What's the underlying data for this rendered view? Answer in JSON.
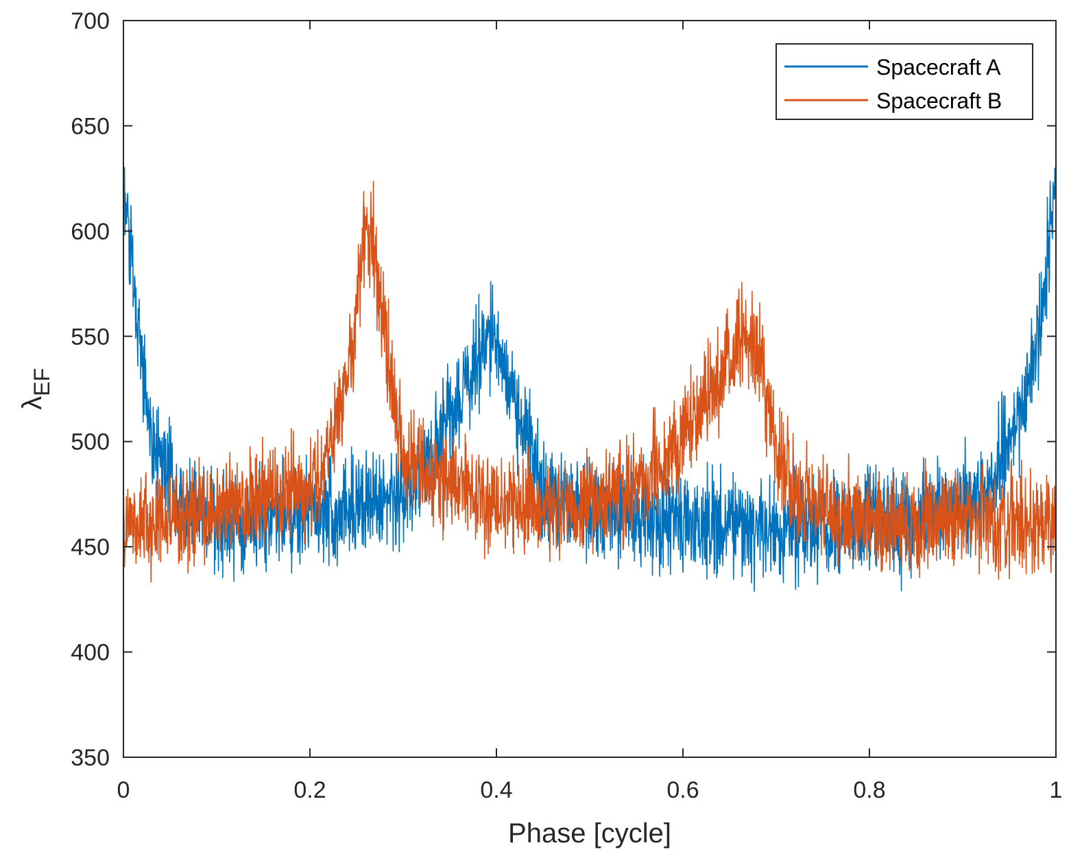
{
  "chart_data": {
    "type": "line",
    "title": "",
    "xlabel": "Phase [cycle]",
    "ylabel_main": "λ",
    "ylabel_sub": "EF",
    "xlim": [
      0,
      1
    ],
    "ylim": [
      350,
      700
    ],
    "xticks": [
      0,
      0.2,
      0.4,
      0.6,
      0.8,
      1
    ],
    "xtick_labels": [
      "0",
      "0.2",
      "0.4",
      "0.6",
      "0.8",
      "1"
    ],
    "yticks": [
      350,
      400,
      450,
      500,
      550,
      600,
      650,
      700
    ],
    "ytick_labels": [
      "350",
      "400",
      "450",
      "500",
      "550",
      "600",
      "650",
      "700"
    ],
    "legend_position": "top-right",
    "series": [
      {
        "name": "Spacecraft A",
        "color": "#0072BD",
        "noise_amplitude": 22,
        "envelope_x": [
          0,
          0.005,
          0.015,
          0.03,
          0.06,
          0.1,
          0.15,
          0.2,
          0.25,
          0.3,
          0.33,
          0.36,
          0.39,
          0.4,
          0.42,
          0.45,
          0.5,
          0.55,
          0.6,
          0.65,
          0.7,
          0.75,
          0.8,
          0.85,
          0.9,
          0.93,
          0.96,
          0.98,
          0.99,
          1.0
        ],
        "envelope_y": [
          620,
          600,
          560,
          500,
          470,
          462,
          462,
          466,
          470,
          472,
          495,
          520,
          550,
          545,
          520,
          475,
          468,
          465,
          462,
          460,
          458,
          460,
          462,
          462,
          470,
          482,
          510,
          545,
          580,
          630
        ]
      },
      {
        "name": "Spacecraft B",
        "color": "#D95319",
        "noise_amplitude": 22,
        "envelope_x": [
          0,
          0.05,
          0.1,
          0.15,
          0.18,
          0.21,
          0.23,
          0.245,
          0.26,
          0.27,
          0.28,
          0.3,
          0.33,
          0.36,
          0.4,
          0.45,
          0.5,
          0.55,
          0.58,
          0.61,
          0.64,
          0.665,
          0.68,
          0.7,
          0.73,
          0.8,
          0.85,
          0.9,
          0.95,
          1.0
        ],
        "envelope_y": [
          462,
          462,
          466,
          475,
          478,
          485,
          510,
          545,
          600,
          590,
          550,
          495,
          482,
          478,
          472,
          470,
          472,
          478,
          490,
          508,
          530,
          555,
          540,
          495,
          470,
          462,
          462,
          462,
          462,
          462
        ]
      }
    ]
  }
}
